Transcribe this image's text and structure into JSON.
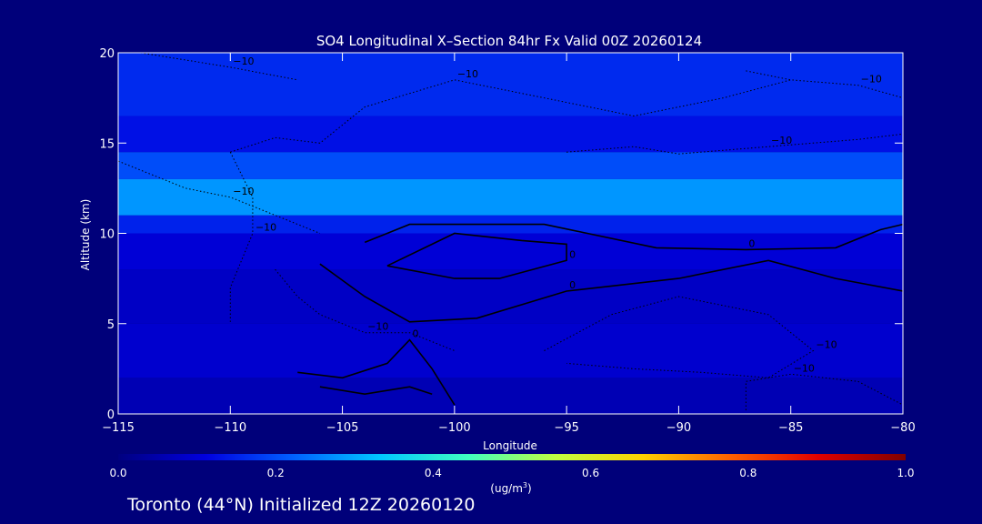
{
  "chart_data": {
    "type": "heatmap",
    "title": "SO4 Longitudinal X–Section 84hr  Fx Valid 00Z 20260124",
    "subtitle": "Toronto (44°N) Initialized 12Z 20260120",
    "xlabel": "Longitude",
    "ylabel": "Altitude (km)",
    "xlim": [
      -115,
      -80
    ],
    "ylim": [
      0,
      20
    ],
    "x_ticks": [
      -115,
      -110,
      -105,
      -100,
      -95,
      -90,
      -85,
      -80
    ],
    "x_tick_labels": [
      "−115",
      "−110",
      "−105",
      "−100",
      "−95",
      "−90",
      "−85",
      "−80"
    ],
    "y_ticks": [
      0,
      5,
      10,
      15,
      20
    ],
    "y_tick_labels": [
      "0",
      "5",
      "10",
      "15",
      "20"
    ],
    "colorbar": {
      "label_main": "(ug/m",
      "label_sup": "3",
      "label_end": ")",
      "range": [
        0.0,
        1.0
      ],
      "ticks": [
        0.0,
        0.2,
        0.4,
        0.6,
        0.8,
        1.0
      ],
      "tick_labels": [
        "0.0",
        "0.2",
        "0.4",
        "0.6",
        "0.8",
        "1.0"
      ],
      "colors": [
        "#000080",
        "#0000e0",
        "#0060ff",
        "#00c8ff",
        "#40ffc0",
        "#c0ff40",
        "#ffd000",
        "#ff6000",
        "#e00000",
        "#800000"
      ]
    },
    "altitude_bands": [
      {
        "z": [
          0,
          2
        ],
        "value": 0.06
      },
      {
        "z": [
          2,
          5
        ],
        "value": 0.09
      },
      {
        "z": [
          5,
          8
        ],
        "value": 0.08
      },
      {
        "z": [
          8,
          10
        ],
        "value": 0.1
      },
      {
        "z": [
          10,
          11
        ],
        "value": 0.15
      },
      {
        "z": [
          11,
          13
        ],
        "value": 0.28
      },
      {
        "z": [
          13,
          14.5
        ],
        "value": 0.2
      },
      {
        "z": [
          14.5,
          16.5
        ],
        "value": 0.13
      },
      {
        "z": [
          16.5,
          20
        ],
        "value": 0.16
      }
    ],
    "contours": [
      {
        "style": "solid",
        "label": "0",
        "points": [
          [
            -104,
            9.5
          ],
          [
            -102,
            10.5
          ],
          [
            -96,
            10.5
          ],
          [
            -91,
            9.2
          ],
          [
            -87,
            9.1
          ],
          [
            -83,
            9.2
          ],
          [
            -81,
            10.2
          ],
          [
            -80,
            10.5
          ]
        ]
      },
      {
        "style": "solid",
        "label": "0",
        "points": [
          [
            -103,
            8.2
          ],
          [
            -100,
            10
          ],
          [
            -97,
            9.6
          ],
          [
            -95,
            9.4
          ],
          [
            -95,
            8.5
          ],
          [
            -98,
            7.5
          ],
          [
            -100,
            7.5
          ],
          [
            -103,
            8.2
          ]
        ]
      },
      {
        "style": "solid",
        "label": "0",
        "points": [
          [
            -106,
            8.3
          ],
          [
            -104,
            6.5
          ],
          [
            -102,
            5.1
          ],
          [
            -99,
            5.3
          ],
          [
            -95,
            6.8
          ],
          [
            -90,
            7.5
          ],
          [
            -86,
            8.5
          ],
          [
            -83,
            7.5
          ],
          [
            -80,
            6.8
          ]
        ]
      },
      {
        "style": "solid",
        "label": "0",
        "points": [
          [
            -107,
            2.3
          ],
          [
            -105,
            2
          ],
          [
            -103,
            2.8
          ],
          [
            -102,
            4.1
          ],
          [
            -101,
            2.5
          ],
          [
            -100,
            0.5
          ]
        ]
      },
      {
        "style": "solid",
        "label": "",
        "points": [
          [
            -106,
            1.5
          ],
          [
            -104,
            1.1
          ],
          [
            -102,
            1.5
          ],
          [
            -101,
            1.1
          ]
        ]
      },
      {
        "style": "dotted",
        "label": "−10",
        "points": [
          [
            -114,
            20
          ],
          [
            -110,
            19.2
          ],
          [
            -107,
            18.5
          ]
        ]
      },
      {
        "style": "dotted",
        "label": "−10",
        "points": [
          [
            -110,
            14.5
          ],
          [
            -108,
            15.3
          ],
          [
            -106,
            15
          ],
          [
            -104,
            17
          ],
          [
            -100,
            18.5
          ],
          [
            -96,
            17.5
          ],
          [
            -92,
            16.5
          ],
          [
            -88,
            17.5
          ],
          [
            -85,
            18.5
          ]
        ]
      },
      {
        "style": "dotted",
        "label": "−10",
        "points": [
          [
            -115,
            14
          ],
          [
            -112,
            12.5
          ],
          [
            -110,
            12
          ],
          [
            -108,
            11
          ],
          [
            -106,
            10
          ]
        ]
      },
      {
        "style": "dotted",
        "label": "−10",
        "points": [
          [
            -110,
            14.5
          ],
          [
            -109,
            12
          ],
          [
            -109,
            10
          ],
          [
            -110,
            7
          ],
          [
            -110,
            5.1
          ]
        ]
      },
      {
        "style": "dotted",
        "label": "−10",
        "points": [
          [
            -108,
            8
          ],
          [
            -107,
            6.5
          ],
          [
            -106,
            5.5
          ],
          [
            -104,
            4.5
          ],
          [
            -102,
            4.5
          ],
          [
            -100,
            3.5
          ]
        ]
      },
      {
        "style": "dotted",
        "label": "−10",
        "points": [
          [
            -96,
            3.5
          ],
          [
            -93,
            5.5
          ],
          [
            -90,
            6.5
          ],
          [
            -86,
            5.5
          ],
          [
            -84,
            3.5
          ],
          [
            -86,
            2
          ],
          [
            -89,
            2.3
          ],
          [
            -92,
            2.5
          ],
          [
            -95,
            2.8
          ]
        ]
      },
      {
        "style": "dotted",
        "label": "−10",
        "points": [
          [
            -87,
            0.2
          ],
          [
            -87,
            1.8
          ],
          [
            -85,
            2.2
          ],
          [
            -82,
            1.8
          ],
          [
            -80,
            0.5
          ]
        ]
      },
      {
        "style": "dotted",
        "label": "−10",
        "points": [
          [
            -95,
            14.5
          ],
          [
            -92,
            14.8
          ],
          [
            -90,
            14.4
          ],
          [
            -86,
            14.8
          ],
          [
            -82,
            15.2
          ],
          [
            -80,
            15.5
          ]
        ]
      },
      {
        "style": "dotted",
        "label": "−10",
        "points": [
          [
            -87,
            19
          ],
          [
            -85,
            18.5
          ],
          [
            -82,
            18.2
          ],
          [
            -80,
            17.5
          ]
        ]
      }
    ]
  }
}
